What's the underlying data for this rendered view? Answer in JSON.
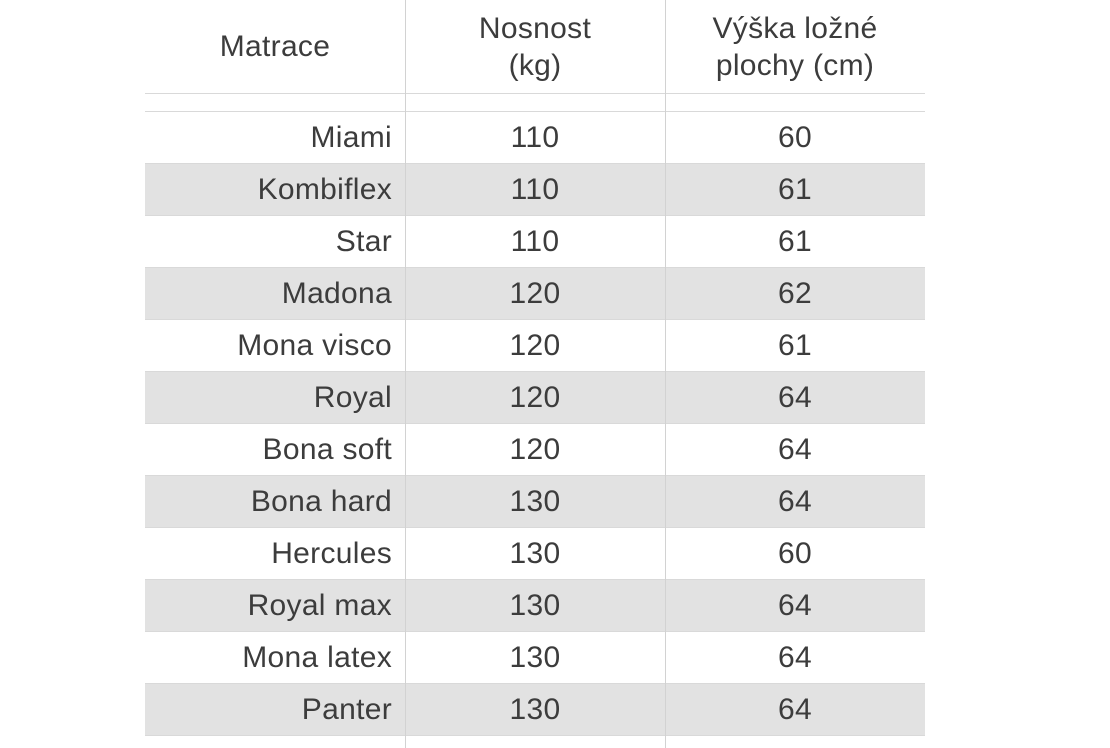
{
  "colors": {
    "row_alt_background": "#e2e2e2",
    "grid_border": "#d9d9d9",
    "text": "#3c3c3c",
    "page_background": "#ffffff"
  },
  "chart_data": {
    "type": "table",
    "columns": [
      "Matrace",
      "Nosnost (kg)",
      "Výška ložné plochy (cm)"
    ],
    "header_lines": [
      [
        "Matrace"
      ],
      [
        "Nosnost",
        "(kg)"
      ],
      [
        "Výška ložné",
        "plochy (cm)"
      ]
    ],
    "rows": [
      [
        "Miami",
        "110",
        "60"
      ],
      [
        "Kombiflex",
        "110",
        "61"
      ],
      [
        "Star",
        "110",
        "61"
      ],
      [
        "Madona",
        "120",
        "62"
      ],
      [
        "Mona visco",
        "120",
        "61"
      ],
      [
        "Royal",
        "120",
        "64"
      ],
      [
        "Bona soft",
        "120",
        "64"
      ],
      [
        "Bona hard",
        "130",
        "64"
      ],
      [
        "Hercules",
        "130",
        "60"
      ],
      [
        "Royal max",
        "130",
        "64"
      ],
      [
        "Mona latex",
        "130",
        "64"
      ],
      [
        "Panter",
        "130",
        "64"
      ]
    ]
  }
}
